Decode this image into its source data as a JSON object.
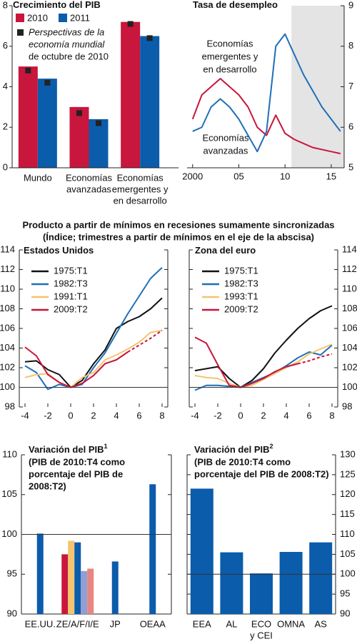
{
  "heading": [
    "Producto a partir de mínimos en recesiones sumamente sincronizadas",
    "(Índice; trimestres a partir de mínimos en el eje de la abscisa)"
  ],
  "chart_data": [
    {
      "type": "bar",
      "title": "Crecimiento del PIB",
      "categories": [
        "Mundo",
        [
          "Economías",
          "avanzadas"
        ],
        [
          "Economías",
          "emergentes y",
          "en desarrollo"
        ]
      ],
      "series": [
        {
          "name": "2010",
          "color": "#c8163c",
          "values": [
            5.0,
            3.0,
            7.2
          ],
          "markers": [
            4.8,
            2.7,
            7.1
          ]
        },
        {
          "name": "2011",
          "color": "#0b5cab",
          "values": [
            4.4,
            2.4,
            6.5
          ],
          "markers": [
            4.2,
            2.2,
            6.4
          ]
        }
      ],
      "marker_name": [
        "Perspectivas de la",
        "economía mundial",
        "de octubre de 2010"
      ],
      "marker_color": "#222",
      "ylim": [
        0,
        8
      ],
      "yticks": [
        0,
        2,
        4,
        6,
        8
      ],
      "y_side": "left"
    },
    {
      "type": "line",
      "title": "Tasa de desempleo",
      "x": [
        2000,
        2001,
        2002,
        2003,
        2004,
        2005,
        2006,
        2007,
        2008,
        2009,
        2010,
        2011,
        2012,
        2013,
        2014,
        2015,
        2016
      ],
      "series": [
        {
          "name": [
            "Economías",
            "emergentes y",
            "en desarrollo"
          ],
          "color": "#c8163c",
          "values": [
            6.2,
            6.8,
            7.0,
            7.2,
            7.0,
            6.8,
            6.5,
            6.0,
            5.8,
            6.3,
            5.85,
            5.7,
            5.6,
            5.5,
            5.45,
            5.4,
            5.35
          ]
        },
        {
          "name": [
            "Economías",
            "avanzadas"
          ],
          "color": "#1f6fb8",
          "values": [
            5.9,
            6.0,
            6.5,
            6.7,
            6.5,
            6.2,
            5.8,
            5.4,
            5.9,
            8.0,
            8.3,
            7.8,
            7.3,
            6.9,
            6.5,
            6.2,
            5.9
          ]
        }
      ],
      "xlim": [
        1999.4,
        2016.4
      ],
      "xticks": [
        2000,
        {
          "value": 2005,
          "label": "05"
        },
        {
          "value": 2010,
          "label": "10"
        },
        {
          "value": 2015,
          "label": "15"
        }
      ],
      "ylim": [
        5,
        9
      ],
      "yticks": [
        5,
        6,
        7,
        8,
        9
      ],
      "y_side": "right",
      "shade_x": [
        2010.7,
        2016.4
      ],
      "shade_color": "#e4e4e4"
    },
    {
      "type": "line",
      "title": "Estados Unidos",
      "x": [
        -4,
        -3,
        -2,
        -1,
        0,
        1,
        2,
        3,
        4,
        5,
        6,
        7,
        8
      ],
      "series": [
        {
          "name": "1975:T1",
          "color": "#111111",
          "values": [
            102.6,
            102.7,
            101.8,
            101.3,
            100,
            100.7,
            102.4,
            103.8,
            106.0,
            106.7,
            107.2,
            108.0,
            109.1
          ]
        },
        {
          "name": "1982:T3",
          "color": "#1f6fb8",
          "values": [
            102.2,
            101.5,
            99.8,
            100.3,
            100,
            100.3,
            102.0,
            103.5,
            105.5,
            107.5,
            109.3,
            111.1,
            112.2
          ]
        },
        {
          "name": "1991:T1",
          "color": "#f5c46e",
          "values": [
            101.0,
            101.3,
            101.4,
            100.5,
            100,
            101.0,
            101.5,
            102.8,
            103.3,
            103.9,
            104.6,
            105.6,
            105.8
          ]
        },
        {
          "name": "2009:T2",
          "color": "#c8163c",
          "values": [
            104.1,
            103.2,
            101.3,
            100.5,
            100,
            100.4,
            101.2,
            102.4,
            102.8,
            103.6,
            104.3,
            105.0,
            105.8
          ],
          "projection_from": 5
        }
      ],
      "xlim": [
        -4.5,
        8.5
      ],
      "xticks": [
        -4,
        -2,
        0,
        2,
        4,
        6,
        8
      ],
      "ylim": [
        98,
        114
      ],
      "yticks": [
        98,
        100,
        102,
        104,
        106,
        108,
        110,
        112,
        114
      ],
      "y_side": "left",
      "refline": 100
    },
    {
      "type": "line",
      "title": "Zona del euro",
      "x": [
        -4,
        -3,
        -2,
        -1,
        0,
        1,
        2,
        3,
        4,
        5,
        6,
        7,
        8
      ],
      "series": [
        {
          "name": "1975:T1",
          "color": "#111111",
          "values": [
            101.7,
            101.9,
            102.1,
            100.9,
            100,
            100.7,
            101.9,
            103.5,
            104.8,
            106.0,
            107.0,
            107.8,
            108.3
          ]
        },
        {
          "name": "1982:T3",
          "color": "#1f6fb8",
          "values": [
            99.7,
            100.2,
            100.2,
            100.1,
            100,
            100.5,
            101.0,
            101.5,
            102.2,
            103.0,
            103.6,
            103.3,
            104.3
          ]
        },
        {
          "name": "1993:T1",
          "color": "#f5c46e",
          "values": [
            101.2,
            101.0,
            100.9,
            100.4,
            100,
            100.2,
            100.8,
            101.4,
            102.0,
            102.6,
            103.4,
            103.9,
            104.4
          ]
        },
        {
          "name": "2009:T2",
          "color": "#c8163c",
          "values": [
            105.1,
            104.5,
            102.3,
            100.2,
            100,
            100.4,
            100.9,
            101.6,
            102.1,
            102.4,
            102.7,
            103.1,
            103.4
          ],
          "projection_from": 5
        }
      ],
      "xlim": [
        -4.5,
        8.5
      ],
      "xticks": [
        -4,
        -2,
        0,
        2,
        4,
        6,
        8
      ],
      "ylim": [
        98,
        114
      ],
      "yticks": [
        98,
        100,
        102,
        104,
        106,
        108,
        110,
        112,
        114
      ],
      "y_side": "right",
      "refline": 100
    },
    {
      "type": "bar",
      "title": "Variación del PIB",
      "title_note": "1",
      "subtitle": [
        "(PIB de 2010:T4 como",
        "porcentaje del PIB de",
        "2008:T2)"
      ],
      "categories": [
        "EE.UU.",
        "ZE/A/F/I/E",
        "JP",
        "OEAA"
      ],
      "series": [
        {
          "color": "#c8163c",
          "values": [
            null,
            97.5,
            null,
            null
          ]
        },
        {
          "color": "#f5c46e",
          "values": [
            null,
            99.2,
            null,
            null
          ]
        },
        {
          "color": "#0b5cab",
          "values": [
            100.1,
            99.0,
            96.6,
            106.3
          ]
        },
        {
          "color": "#8f9fd6",
          "values": [
            null,
            95.4,
            null,
            null
          ]
        },
        {
          "color": "#e88680",
          "values": [
            null,
            95.7,
            null,
            null
          ]
        }
      ],
      "ylim": [
        90,
        110
      ],
      "yticks": [
        90,
        95,
        100,
        105,
        110
      ],
      "y_side": "left",
      "refline": 100
    },
    {
      "type": "bar",
      "title": "Variación del PIB",
      "title_note": "2",
      "subtitle": [
        "(PIB de 2010:T4 como",
        "porcentaje del PIB de 2008:T2)"
      ],
      "categories": [
        "EEA",
        "AL",
        [
          "ECO",
          "y CEI"
        ],
        "OMNA",
        "AS"
      ],
      "series": [
        {
          "color": "#0b5cab",
          "values": [
            121.5,
            105.5,
            100.2,
            105.6,
            108.0
          ]
        }
      ],
      "ylim": [
        90,
        130
      ],
      "yticks": [
        90,
        95,
        100,
        105,
        110,
        115,
        120,
        125,
        130
      ],
      "y_side": "right",
      "refline": 100
    }
  ]
}
